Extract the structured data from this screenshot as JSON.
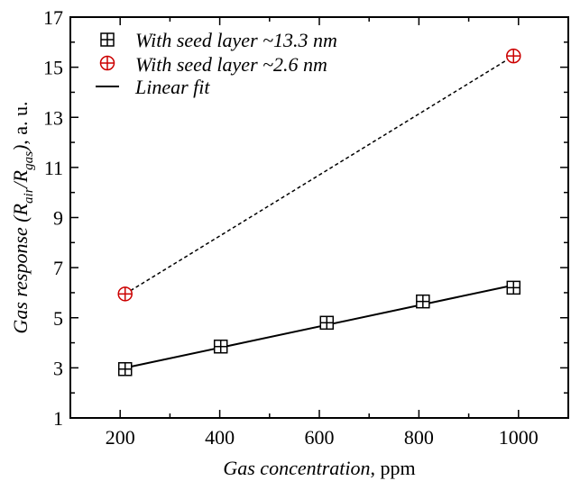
{
  "chart_data": {
    "type": "line",
    "xlabel": {
      "italic": "Gas concentration",
      "rest": ", ppm"
    },
    "ylabel": {
      "italic_pre": "Gas response (R",
      "sub1": "air",
      "mid": "/R",
      "sub2": "gas",
      "close": ")",
      "rest": ", a. u."
    },
    "xlim": [
      100,
      1100
    ],
    "ylim": [
      1,
      17
    ],
    "xticks": [
      200,
      400,
      600,
      800,
      1000
    ],
    "yticks": [
      1,
      3,
      5,
      7,
      9,
      11,
      13,
      15,
      17
    ],
    "legend_position": "top-left",
    "series": [
      {
        "name": "With seed layer ~13.3 nm",
        "marker": "square-plus",
        "color": "#000000",
        "x": [
          210,
          402,
          615,
          808,
          990
        ],
        "y": [
          2.95,
          3.85,
          4.8,
          5.65,
          6.2
        ]
      },
      {
        "name": "With seed layer ~2.6 nm",
        "marker": "circle-plus",
        "color": "#cc0000",
        "x": [
          210,
          990
        ],
        "y": [
          5.95,
          15.45
        ]
      }
    ],
    "fits": [
      {
        "name": "Linear fit",
        "style": "solid",
        "color": "#000000",
        "x": [
          210,
          990
        ],
        "y": [
          3.0,
          6.3
        ]
      },
      {
        "style": "dashed",
        "color": "#000000",
        "x": [
          210,
          990
        ],
        "y": [
          5.95,
          15.45
        ]
      }
    ]
  }
}
